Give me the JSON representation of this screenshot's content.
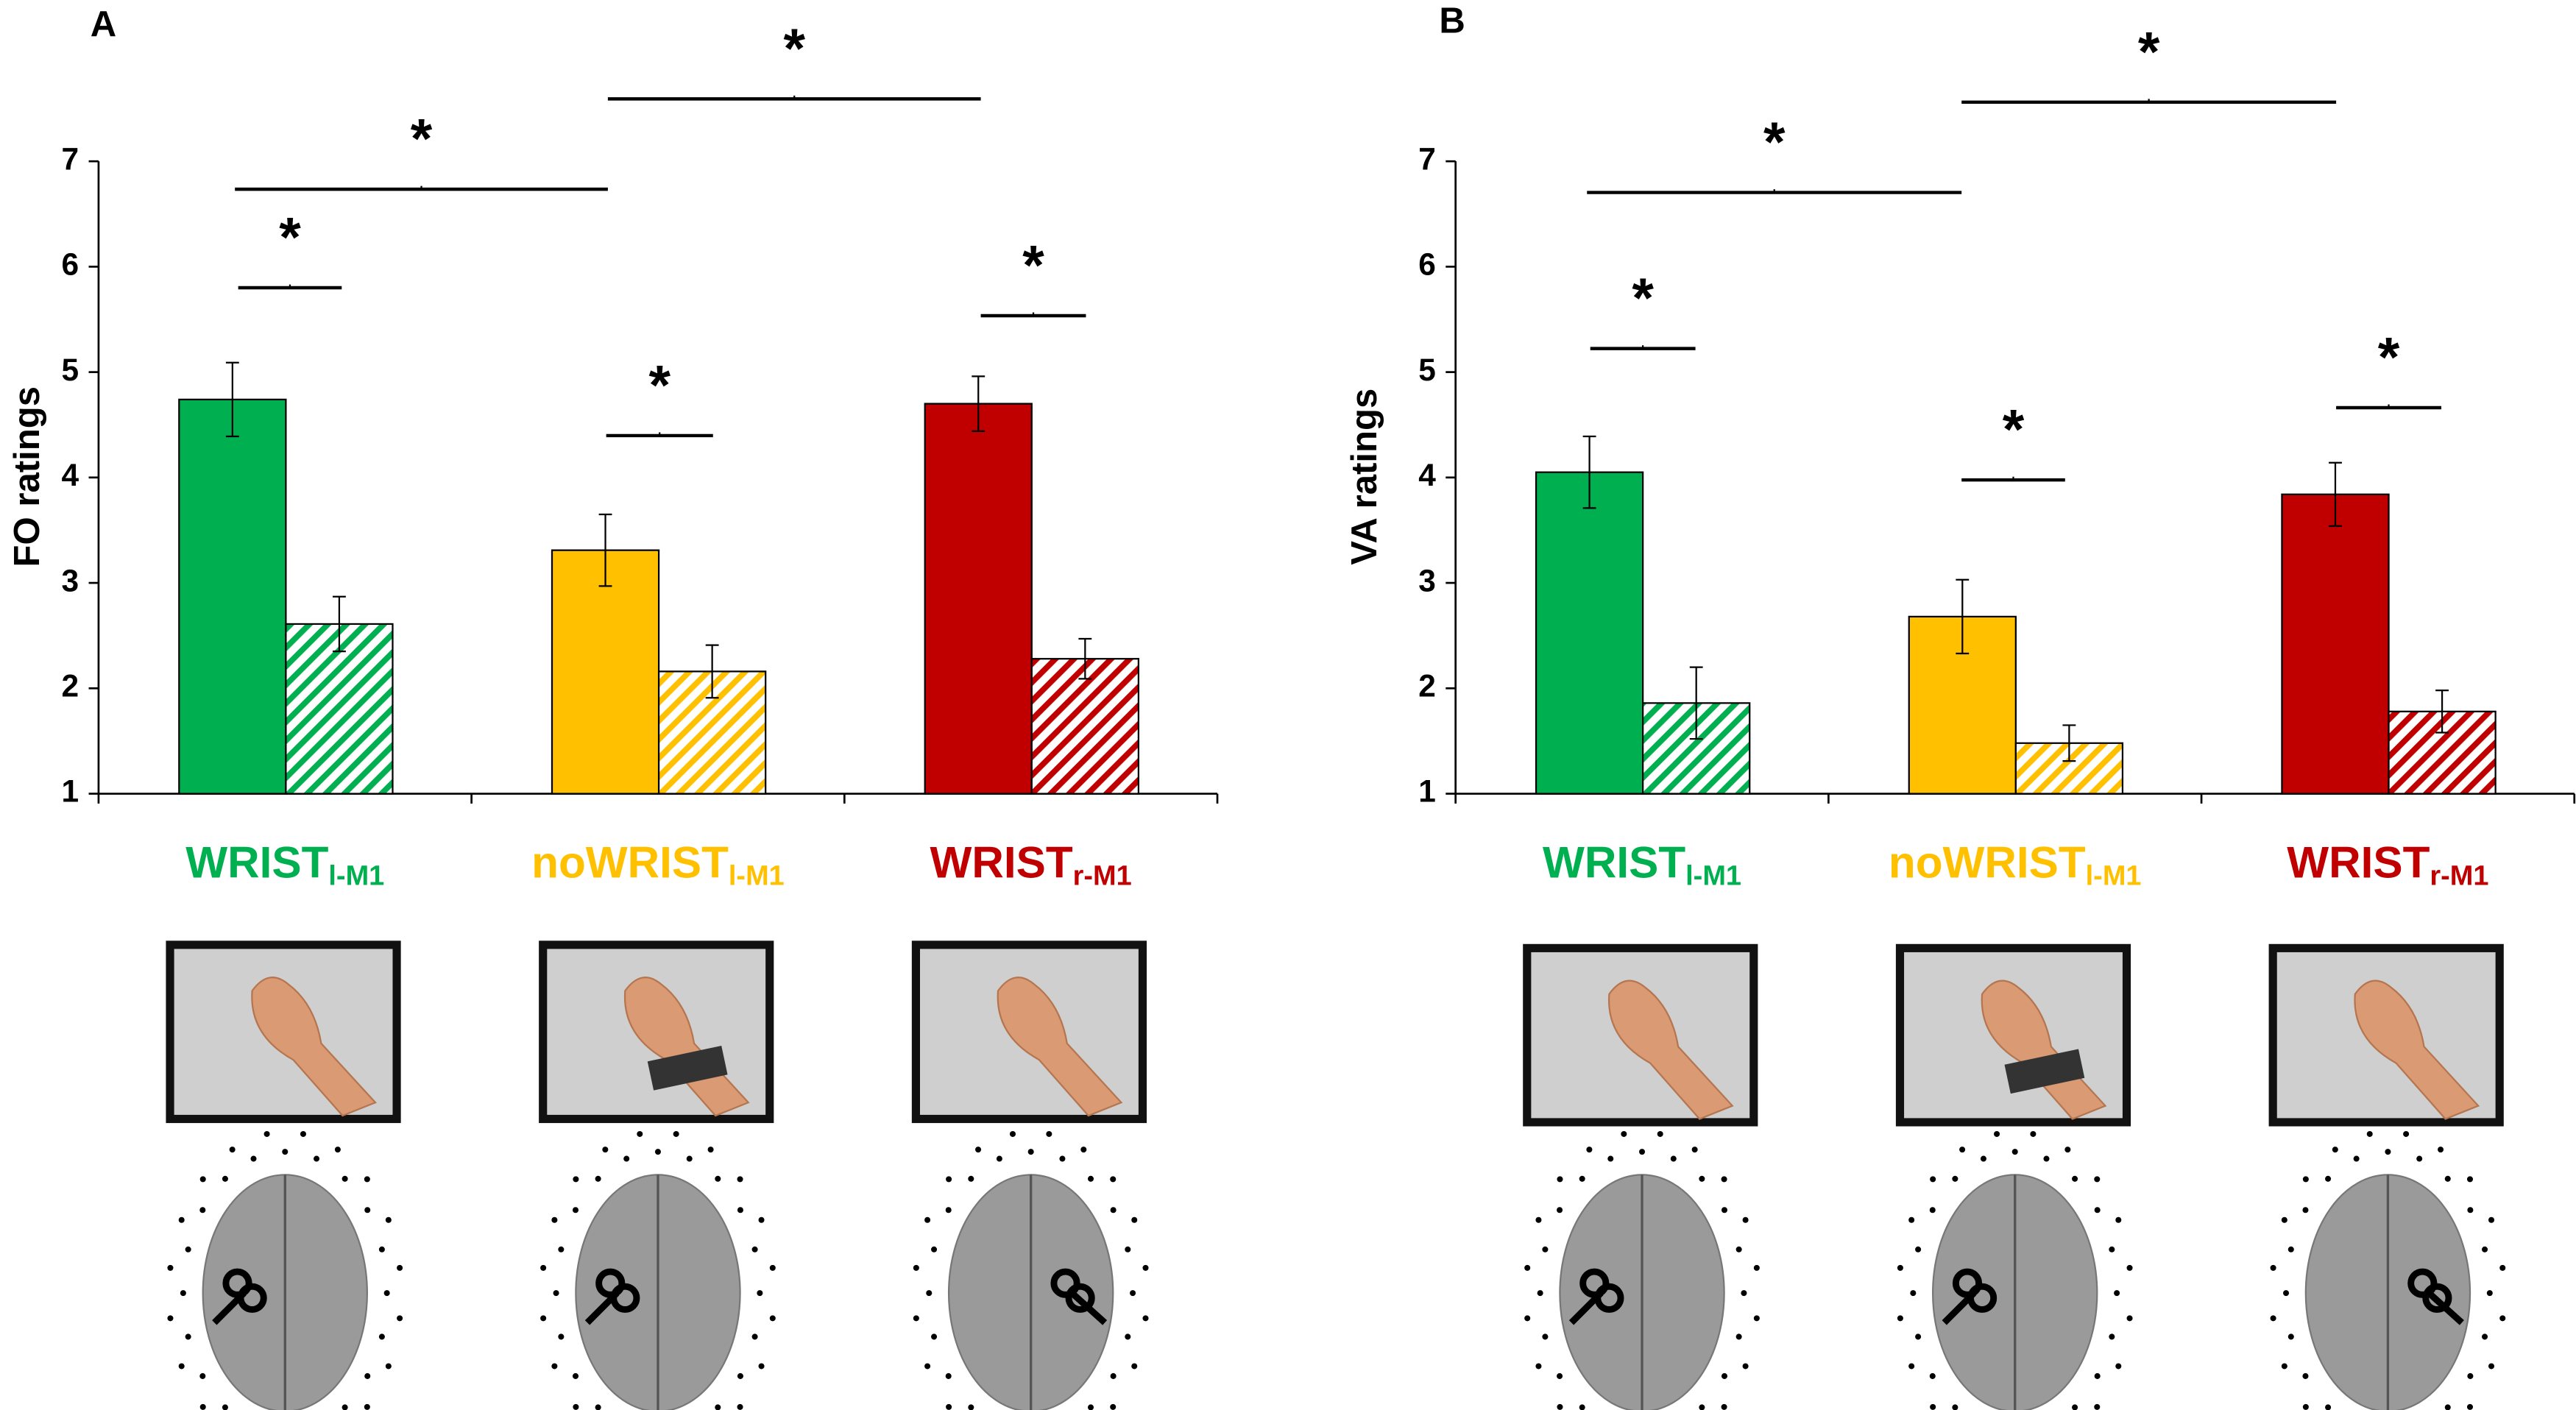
{
  "chart_data": [
    {
      "type": "bar",
      "panel": "A",
      "ylabel": "FO ratings",
      "categories": [
        "WRIST",
        "noWRIST",
        "WRIST"
      ],
      "category_subscripts": [
        "l-M1",
        "l-M1",
        "r-M1"
      ],
      "category_colors": [
        "#00b050",
        "#ffc000",
        "#c00000"
      ],
      "series": [
        {
          "pattern": "solid",
          "values": [
            4.74,
            3.31,
            4.7
          ],
          "errors": [
            0.35,
            0.34,
            0.26
          ]
        },
        {
          "pattern": "hatched",
          "values": [
            2.61,
            2.16,
            2.28
          ],
          "errors": [
            0.26,
            0.25,
            0.19
          ]
        }
      ],
      "ylim": [
        1,
        7
      ],
      "yticks": [
        1,
        2,
        3,
        4,
        5,
        6,
        7
      ],
      "grid": false,
      "significance": [
        "*",
        "*",
        "*",
        "*",
        "*"
      ]
    },
    {
      "type": "bar",
      "panel": "B",
      "ylabel": "VA ratings",
      "categories": [
        "WRIST",
        "noWRIST",
        "WRIST"
      ],
      "category_subscripts": [
        "l-M1",
        "l-M1",
        "r-M1"
      ],
      "category_colors": [
        "#00b050",
        "#ffc000",
        "#c00000"
      ],
      "series": [
        {
          "pattern": "solid",
          "values": [
            4.05,
            2.68,
            3.84
          ],
          "errors": [
            0.34,
            0.35,
            0.3
          ]
        },
        {
          "pattern": "hatched",
          "values": [
            1.86,
            1.48,
            1.78
          ],
          "errors": [
            0.34,
            0.17,
            0.2
          ]
        }
      ],
      "ylim": [
        1,
        7
      ],
      "yticks": [
        1,
        2,
        3,
        4,
        5,
        6,
        7
      ],
      "grid": false,
      "significance": [
        "*",
        "*",
        "*",
        "*",
        "*"
      ]
    }
  ]
}
